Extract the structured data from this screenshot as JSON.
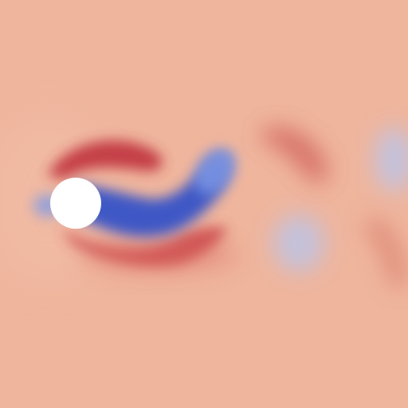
{
  "colors": {
    "background": "#efb59d",
    "cylinder": "#ffffff",
    "red_strong": "#c0303c",
    "red_mid": "#d9665c",
    "red_soft": "#e49a88",
    "blue_strong": "#2f4fc6",
    "blue_mid": "#6f8fe6",
    "blue_soft": "#b6c6f0"
  },
  "scene": {
    "description_text": "",
    "objects": [
      {
        "name": "cylinder",
        "type": "solid-circle"
      },
      {
        "name": "wake-negative-vortex",
        "type": "blue-streak"
      },
      {
        "name": "wake-positive-shear-top",
        "type": "red-arc"
      },
      {
        "name": "wake-positive-shear-bottom",
        "type": "red-arc"
      },
      {
        "name": "downstream-vortices",
        "type": "mixed"
      }
    ]
  }
}
